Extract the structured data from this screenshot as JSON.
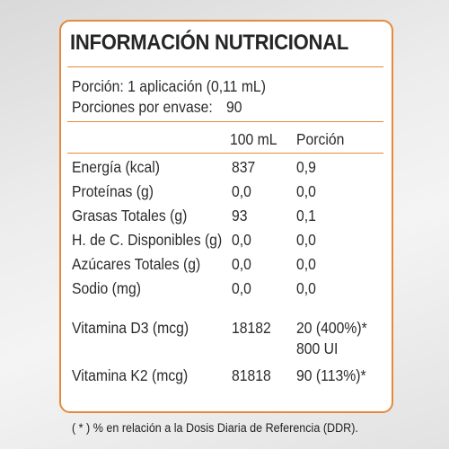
{
  "title": "INFORMACIÓN NUTRICIONAL",
  "serving": {
    "portion": "Porción: 1 aplicación (0,11 mL)",
    "per_container_label": "Porciones por envase:",
    "per_container_value": "90"
  },
  "columns": {
    "per_100ml": "100 mL",
    "per_portion": "Porción"
  },
  "nutrients": [
    {
      "name": "Energía (kcal)",
      "per_100ml": "837",
      "per_portion": "0,9"
    },
    {
      "name": "Proteínas (g)",
      "per_100ml": "0,0",
      "per_portion": "0,0"
    },
    {
      "name": "Grasas Totales (g)",
      "per_100ml": "93",
      "per_portion": "0,1"
    },
    {
      "name": "H. de C. Disponibles (g)",
      "per_100ml": "0,0",
      "per_portion": "0,0"
    },
    {
      "name": "Azúcares Totales (g)",
      "per_100ml": "0,0",
      "per_portion": "0,0"
    },
    {
      "name": "Sodio (mg)",
      "per_100ml": "0,0",
      "per_portion": "0,0"
    }
  ],
  "vitamins": [
    {
      "name": "Vitamina D3 (mcg)",
      "per_100ml": "18182",
      "per_portion": "20 (400%)*",
      "per_portion_extra": "800 UI"
    },
    {
      "name": "Vitamina K2 (mcg)",
      "per_100ml": "81818",
      "per_portion": "90 (113%)*"
    }
  ],
  "footnote": "( * ) % en relación a la Dosis Diaria de Referencia (DDR).",
  "colors": {
    "border_accent": "#e58a3a",
    "text": "#2b2b2b",
    "background": "#ffffff"
  }
}
